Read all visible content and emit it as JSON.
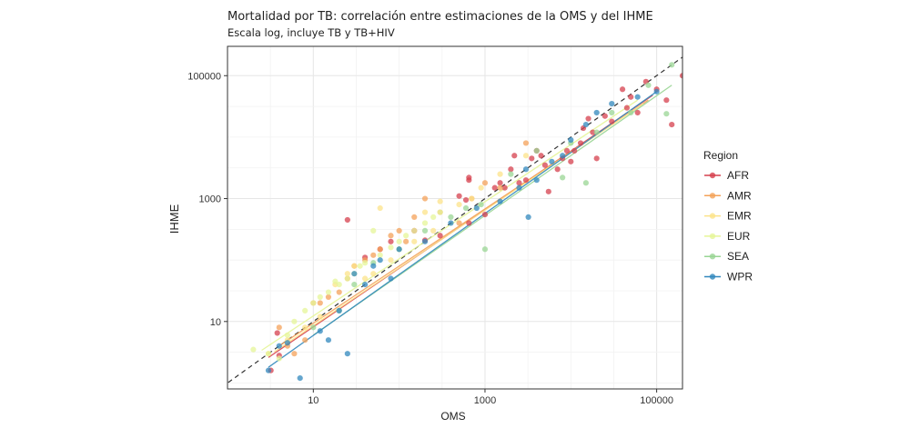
{
  "chart_data": {
    "type": "scatter",
    "title": "Mortalidad por TB: correlación entre estimaciones de la OMS y del IHME",
    "subtitle": "Escala log, incluye TB y TB+HIV",
    "xlabel": "OMS",
    "ylabel": "IHME",
    "x_scale": "log10",
    "y_scale": "log10",
    "xlim": [
      1,
      200000
    ],
    "ylim": [
      0.8,
      300000
    ],
    "x_ticks": [
      10,
      1000,
      100000
    ],
    "y_ticks": [
      10,
      1000,
      100000
    ],
    "x_tick_labels": [
      "10",
      "1000",
      "100000"
    ],
    "y_tick_labels": [
      "10",
      "1000",
      "100000"
    ],
    "grid": true,
    "identity_line": true,
    "legend_title": "Region",
    "legend_position": "right",
    "series": [
      {
        "name": "AFR",
        "color": "#d6404e",
        "points": [
          [
            3.2,
            1.6
          ],
          [
            3.8,
            6.5
          ],
          [
            4,
            2.8
          ],
          [
            25,
            450
          ],
          [
            40,
            110
          ],
          [
            60,
            150
          ],
          [
            80,
            200
          ],
          [
            150,
            300
          ],
          [
            200,
            210
          ],
          [
            300,
            250
          ],
          [
            500,
            1100
          ],
          [
            600,
            950
          ],
          [
            650,
            2000
          ],
          [
            650,
            2200
          ],
          [
            650,
            400
          ],
          [
            1000,
            550
          ],
          [
            1300,
            1500
          ],
          [
            1500,
            1800
          ],
          [
            1700,
            1500
          ],
          [
            2000,
            3000
          ],
          [
            2200,
            5000
          ],
          [
            2500,
            1800
          ],
          [
            3000,
            2000
          ],
          [
            3500,
            4500
          ],
          [
            4000,
            6000
          ],
          [
            4500,
            5000
          ],
          [
            5000,
            3500
          ],
          [
            5500,
            1300
          ],
          [
            7000,
            3000
          ],
          [
            8000,
            4500
          ],
          [
            9000,
            6000
          ],
          [
            10000,
            4000
          ],
          [
            11000,
            6000
          ],
          [
            13000,
            8000
          ],
          [
            14000,
            14000
          ],
          [
            16000,
            20000
          ],
          [
            18000,
            12000
          ],
          [
            20000,
            4500
          ],
          [
            25000,
            22000
          ],
          [
            30000,
            18000
          ],
          [
            40000,
            60000
          ],
          [
            45000,
            30000
          ],
          [
            50000,
            45000
          ],
          [
            60000,
            25000
          ],
          [
            75000,
            80000
          ],
          [
            100000,
            60000
          ],
          [
            130000,
            40000
          ],
          [
            150000,
            16000
          ],
          [
            200000,
            100000
          ]
        ]
      },
      {
        "name": "AMR",
        "color": "#f4a259",
        "points": [
          [
            4,
            8
          ],
          [
            5,
            4
          ],
          [
            6,
            3
          ],
          [
            8,
            5
          ],
          [
            10,
            20
          ],
          [
            12,
            20
          ],
          [
            15,
            25
          ],
          [
            20,
            30
          ],
          [
            25,
            50
          ],
          [
            30,
            80
          ],
          [
            40,
            100
          ],
          [
            50,
            120
          ],
          [
            60,
            150
          ],
          [
            80,
            250
          ],
          [
            100,
            300
          ],
          [
            120,
            200
          ],
          [
            150,
            500
          ],
          [
            200,
            1000
          ],
          [
            300,
            600
          ],
          [
            500,
            400
          ],
          [
            700,
            1000
          ],
          [
            1000,
            1800
          ],
          [
            1500,
            1500
          ],
          [
            3000,
            8000
          ]
        ]
      },
      {
        "name": "EMR",
        "color": "#fce38a",
        "points": [
          [
            3,
            3
          ],
          [
            5,
            5
          ],
          [
            8,
            8
          ],
          [
            12,
            12
          ],
          [
            18,
            40
          ],
          [
            25,
            60
          ],
          [
            30,
            80
          ],
          [
            40,
            50
          ],
          [
            50,
            60
          ],
          [
            60,
            700
          ],
          [
            80,
            100
          ],
          [
            100,
            150
          ],
          [
            150,
            200
          ],
          [
            200,
            600
          ],
          [
            250,
            300
          ],
          [
            300,
            900
          ],
          [
            500,
            800
          ],
          [
            700,
            1000
          ],
          [
            900,
            1500
          ],
          [
            1500,
            2500
          ],
          [
            3000,
            5000
          ]
        ]
      },
      {
        "name": "EUR",
        "color": "#e6f598",
        "points": [
          [
            2,
            3.5
          ],
          [
            3,
            3
          ],
          [
            4,
            2.5
          ],
          [
            5,
            6
          ],
          [
            6,
            10
          ],
          [
            8,
            15
          ],
          [
            10,
            20
          ],
          [
            12,
            25
          ],
          [
            15,
            30
          ],
          [
            18,
            45
          ],
          [
            20,
            40
          ],
          [
            25,
            50
          ],
          [
            30,
            60
          ],
          [
            35,
            80
          ],
          [
            40,
            90
          ],
          [
            50,
            300
          ],
          [
            60,
            120
          ],
          [
            80,
            160
          ],
          [
            100,
            200
          ],
          [
            120,
            250
          ],
          [
            150,
            300
          ],
          [
            200,
            400
          ],
          [
            250,
            500
          ],
          [
            300,
            600
          ]
        ]
      },
      {
        "name": "SEA",
        "color": "#99d594",
        "points": [
          [
            10,
            8
          ],
          [
            20,
            15
          ],
          [
            30,
            40
          ],
          [
            50,
            90
          ],
          [
            100,
            150
          ],
          [
            200,
            300
          ],
          [
            400,
            500
          ],
          [
            600,
            700
          ],
          [
            900,
            800
          ],
          [
            1000,
            150
          ],
          [
            2000,
            2500
          ],
          [
            4000,
            6000
          ],
          [
            8000,
            2200
          ],
          [
            10000,
            8000
          ],
          [
            15000,
            1800
          ],
          [
            20000,
            12000
          ],
          [
            30000,
            25000
          ],
          [
            50000,
            25000
          ],
          [
            80000,
            70000
          ],
          [
            130000,
            24000
          ],
          [
            150000,
            150000
          ]
        ]
      },
      {
        "name": "WPR",
        "color": "#3288bd",
        "points": [
          [
            3,
            1.6
          ],
          [
            4,
            4
          ],
          [
            5,
            4.5
          ],
          [
            7,
            1.2
          ],
          [
            12,
            7
          ],
          [
            15,
            5
          ],
          [
            20,
            15
          ],
          [
            25,
            3
          ],
          [
            30,
            60
          ],
          [
            40,
            40
          ],
          [
            50,
            80
          ],
          [
            60,
            100
          ],
          [
            80,
            50
          ],
          [
            100,
            150
          ],
          [
            200,
            200
          ],
          [
            400,
            400
          ],
          [
            800,
            700
          ],
          [
            1500,
            900
          ],
          [
            2500,
            1500
          ],
          [
            3000,
            3000
          ],
          [
            3200,
            500
          ],
          [
            4000,
            2000
          ],
          [
            6000,
            4000
          ],
          [
            8000,
            5000
          ],
          [
            10000,
            9000
          ],
          [
            15000,
            16000
          ],
          [
            20000,
            25000
          ],
          [
            30000,
            35000
          ],
          [
            60000,
            45000
          ],
          [
            100000,
            55000
          ]
        ]
      }
    ],
    "fit_lines": [
      {
        "name": "AFR",
        "x": [
          3,
          90000
        ],
        "y": [
          2.6,
          48000
        ]
      },
      {
        "name": "AMR",
        "x": [
          4,
          80000
        ],
        "y": [
          4,
          40000
        ]
      },
      {
        "name": "EMR",
        "x": [
          3.5,
          70000
        ],
        "y": [
          3.2,
          35000
        ]
      },
      {
        "name": "EUR",
        "x": [
          2.5,
          60000
        ],
        "y": [
          3.4,
          40000
        ]
      },
      {
        "name": "SEA",
        "x": [
          10,
          150000
        ],
        "y": [
          6,
          70000
        ]
      },
      {
        "name": "WPR",
        "x": [
          3,
          100000
        ],
        "y": [
          1.8,
          55000
        ]
      }
    ]
  }
}
